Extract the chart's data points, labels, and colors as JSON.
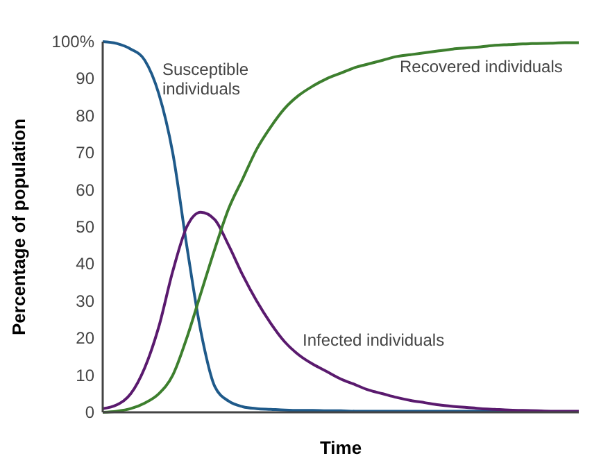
{
  "chart_data": {
    "type": "line",
    "xlabel": "Time",
    "ylabel": "Percentage of population",
    "categories": [
      null,
      null,
      null,
      null,
      null,
      null,
      null,
      null,
      null,
      null,
      null,
      null,
      null,
      null,
      null,
      null,
      null,
      null,
      null,
      null,
      null,
      null,
      null,
      null,
      null,
      null,
      null,
      null,
      null,
      null,
      null,
      null,
      null,
      null,
      null
    ],
    "ylim": [
      0,
      100
    ],
    "yticks": [
      0,
      10,
      20,
      30,
      40,
      50,
      60,
      70,
      80,
      90,
      {
        "value": 100,
        "label": "100%"
      }
    ],
    "tick_labels": "y",
    "grid": false,
    "marker": "none",
    "line_style": "solid",
    "series": [
      {
        "name": "Susceptible individuals",
        "color": "#1f5a8a",
        "values": [
          100,
          99.5,
          98,
          95,
          86,
          70,
          45,
          22,
          7,
          3,
          1.5,
          1,
          0.8,
          0.6,
          0.5,
          0.5,
          0.4,
          0.4,
          0.3,
          0.3,
          0.3,
          0.3,
          0.3,
          0.3,
          0.3,
          0.3,
          0.3,
          0.3,
          0.3,
          0.3,
          0.3,
          null,
          null,
          null,
          null
        ]
      },
      {
        "name": "Infected individuals",
        "color": "#5a1a6e",
        "values": [
          1,
          2,
          5,
          12,
          23,
          38,
          50,
          54,
          52,
          45,
          37,
          30,
          24,
          19,
          15.5,
          13,
          11,
          9,
          7.5,
          6,
          5,
          4,
          3.2,
          2.6,
          2,
          1.6,
          1.3,
          1,
          0.8,
          0.6,
          0.5,
          0.4,
          0.3,
          0.3,
          0.3
        ]
      },
      {
        "name": "Recovered individuals",
        "color": "#3d7f2e",
        "values": [
          0,
          0.3,
          1,
          2.5,
          5,
          10,
          20,
          32,
          44,
          55,
          63,
          71,
          77,
          82,
          85.5,
          88,
          90,
          91.5,
          93,
          94,
          95,
          96,
          96.5,
          97,
          97.5,
          98,
          98.3,
          98.6,
          99,
          99.2,
          99.4,
          99.5,
          99.6,
          99.7,
          99.7
        ]
      }
    ]
  }
}
